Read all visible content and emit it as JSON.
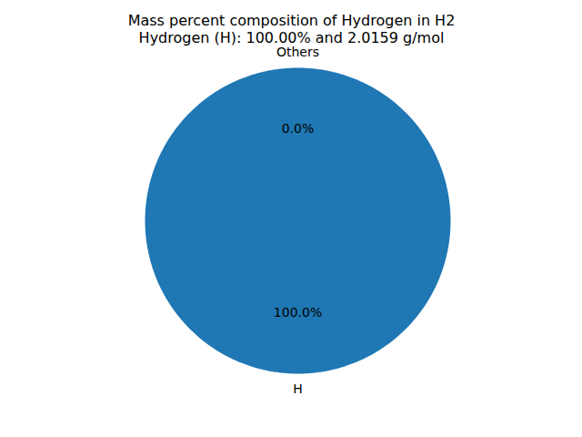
{
  "chart_data": {
    "type": "pie",
    "title": "Mass percent composition of Hydrogen in H2",
    "subtitle": "Hydrogen (H): 100.00% and 2.0159 g/mol",
    "categories": [
      "H",
      "Others"
    ],
    "values": [
      100,
      0
    ],
    "value_labels": [
      "100.0%",
      "0.0%"
    ],
    "colors": [
      "#1f77b4",
      "#ff7f0e"
    ],
    "data_labels": true,
    "tick_labels": false
  }
}
